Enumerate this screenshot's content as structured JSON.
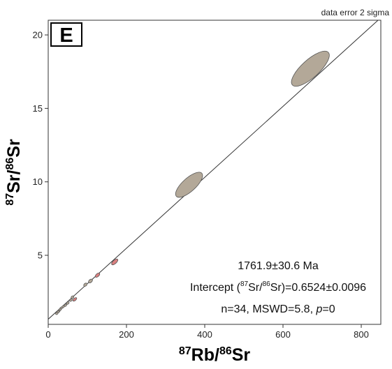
{
  "chart_data": {
    "type": "scatter",
    "panel_label": "E",
    "corner_note": "data error 2 sigma",
    "xlabel": {
      "sup1": "87",
      "base1": "Rb/",
      "sup2": "86",
      "base2": "Sr"
    },
    "ylabel": {
      "sup1": "87",
      "base1": "Sr/",
      "sup2": "86",
      "base2": "Sr"
    },
    "xlim": [
      0,
      850
    ],
    "ylim": [
      0.3,
      21
    ],
    "xticks": [
      0,
      200,
      400,
      600,
      800
    ],
    "yticks": [
      5,
      10,
      15,
      20
    ],
    "xtick_labels": [
      "0",
      "200",
      "400",
      "600",
      "800"
    ],
    "ytick_labels": [
      "5",
      "10",
      "15",
      "20"
    ],
    "isochron": {
      "intercept": 0.6524,
      "slope": 0.02414
    },
    "annotation": {
      "age": "1761.9±30.6 Ma",
      "intercept_prefix": "Intercept (",
      "intercept_sup1": "87",
      "intercept_mid": "Sr/",
      "intercept_sup2": "86",
      "intercept_suffix": "Sr)=0.6524±0.0096",
      "stats_prefix": "n=34, MSWD=5.8, ",
      "stats_p": "p",
      "stats_suffix": "=0"
    },
    "ellipse_colors": {
      "gray": "#b3a898",
      "red": "#d98080"
    },
    "ellipses": [
      {
        "x": 670,
        "y": 17.7,
        "rx": 62,
        "ry": 0.6,
        "color": "gray"
      },
      {
        "x": 360,
        "y": 9.8,
        "rx": 44,
        "ry": 0.45,
        "color": "gray"
      },
      {
        "x": 170,
        "y": 4.55,
        "rx": 10,
        "ry": 0.12,
        "color": "red"
      },
      {
        "x": 126,
        "y": 3.65,
        "rx": 7,
        "ry": 0.1,
        "color": "red"
      },
      {
        "x": 108,
        "y": 3.25,
        "rx": 6,
        "ry": 0.1,
        "color": "gray"
      },
      {
        "x": 95,
        "y": 3.0,
        "rx": 5,
        "ry": 0.09,
        "color": "gray"
      },
      {
        "x": 68,
        "y": 2.0,
        "rx": 6,
        "ry": 0.08,
        "color": "red"
      },
      {
        "x": 62,
        "y": 2.15,
        "rx": 4,
        "ry": 0.08,
        "color": "gray"
      },
      {
        "x": 58,
        "y": 1.95,
        "rx": 4,
        "ry": 0.07,
        "color": "gray"
      },
      {
        "x": 50,
        "y": 1.75,
        "rx": 4,
        "ry": 0.07,
        "color": "gray"
      },
      {
        "x": 44,
        "y": 1.6,
        "rx": 3,
        "ry": 0.06,
        "color": "gray"
      },
      {
        "x": 38,
        "y": 1.5,
        "rx": 3,
        "ry": 0.06,
        "color": "gray"
      },
      {
        "x": 33,
        "y": 1.4,
        "rx": 3,
        "ry": 0.06,
        "color": "gray"
      },
      {
        "x": 30,
        "y": 1.3,
        "rx": 3,
        "ry": 0.05,
        "color": "gray"
      },
      {
        "x": 27,
        "y": 1.2,
        "rx": 3,
        "ry": 0.05,
        "color": "gray"
      },
      {
        "x": 25,
        "y": 1.15,
        "rx": 3,
        "ry": 0.05,
        "color": "gray"
      },
      {
        "x": 22,
        "y": 1.05,
        "rx": 2,
        "ry": 0.05,
        "color": "gray"
      }
    ]
  }
}
